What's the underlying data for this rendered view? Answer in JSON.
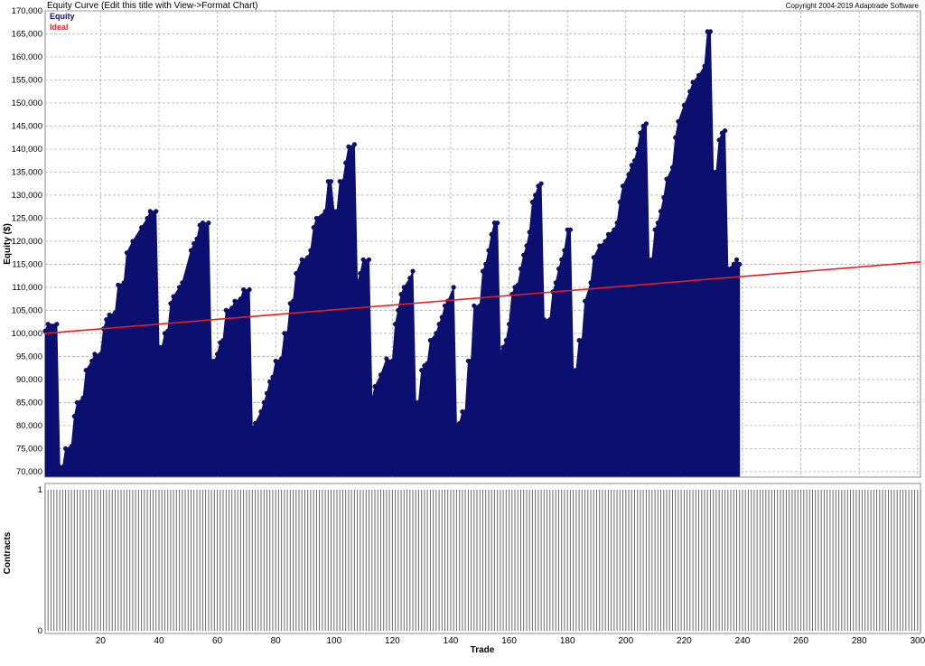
{
  "title": "Equity Curve (Edit this title with View->Format Chart)",
  "copyright": "Copyright 2004-2019 Adaptrade Software",
  "colors": {
    "equity": "#0b1070",
    "ideal": "#e02020",
    "contracts_bars": "#6a6a6a",
    "grid": "#b4b4b4",
    "panel_border": "#8a8a8a"
  },
  "chart_data": [
    {
      "type": "area",
      "title": "Equity Curve (Edit this title with View->Format Chart)",
      "ylabel": "Equity ($)",
      "xlabel": "",
      "xlim": [
        1,
        301
      ],
      "ylim": [
        69000,
        170000
      ],
      "y_ticks": [
        70000,
        75000,
        80000,
        85000,
        90000,
        95000,
        100000,
        105000,
        110000,
        115000,
        120000,
        125000,
        130000,
        135000,
        140000,
        145000,
        150000,
        155000,
        160000,
        165000,
        170000
      ],
      "y_tick_labels": [
        "70,000",
        "75,000",
        "80,000",
        "85,000",
        "90,000",
        "95,000",
        "100,000",
        "105,000",
        "110,000",
        "115,000",
        "120,000",
        "125,000",
        "130,000",
        "135,000",
        "140,000",
        "145,000",
        "150,000",
        "155,000",
        "160,000",
        "165,000",
        "170,000"
      ],
      "grid": true,
      "legend_position": "top-left",
      "series": [
        {
          "name": "Equity",
          "style": "filled area with point markers",
          "keypoints": [
            [
              1,
              100500
            ],
            [
              2,
              102000
            ],
            [
              5,
              102000
            ],
            [
              6,
              71000
            ],
            [
              7,
              71000
            ],
            [
              8,
              75000
            ],
            [
              10,
              75500
            ],
            [
              11,
              82000
            ],
            [
              12,
              85000
            ],
            [
              14,
              86000
            ],
            [
              15,
              92000
            ],
            [
              17,
              94000
            ],
            [
              18,
              95500
            ],
            [
              20,
              95500
            ],
            [
              21,
              101000
            ],
            [
              22,
              103000
            ],
            [
              23,
              104000
            ],
            [
              25,
              104500
            ],
            [
              26,
              110500
            ],
            [
              28,
              111000
            ],
            [
              29,
              117500
            ],
            [
              31,
              120000
            ],
            [
              34,
              123000
            ],
            [
              36,
              125000
            ],
            [
              37,
              126500
            ],
            [
              39,
              126500
            ],
            [
              40,
              97000
            ],
            [
              41,
              97000
            ],
            [
              42,
              100000
            ],
            [
              43,
              100500
            ],
            [
              44,
              106500
            ],
            [
              45,
              108000
            ],
            [
              47,
              110000
            ],
            [
              48,
              111000
            ],
            [
              51,
              118000
            ],
            [
              52,
              119500
            ],
            [
              53,
              120500
            ],
            [
              54,
              123500
            ],
            [
              55,
              124000
            ],
            [
              57,
              124000
            ],
            [
              58,
              94000
            ],
            [
              59,
              94000
            ],
            [
              60,
              95500
            ],
            [
              61,
              98000
            ],
            [
              62,
              98500
            ],
            [
              63,
              105000
            ],
            [
              65,
              105500
            ],
            [
              66,
              107000
            ],
            [
              68,
              107500
            ],
            [
              69,
              109500
            ],
            [
              71,
              109500
            ],
            [
              72,
              79500
            ],
            [
              73,
              80500
            ],
            [
              75,
              83000
            ],
            [
              76,
              85000
            ],
            [
              77,
              87000
            ],
            [
              78,
              89500
            ],
            [
              79,
              90500
            ],
            [
              80,
              94000
            ],
            [
              82,
              94500
            ],
            [
              83,
              100000
            ],
            [
              84,
              100000
            ],
            [
              85,
              106500
            ],
            [
              86,
              107000
            ],
            [
              87,
              113000
            ],
            [
              89,
              116000
            ],
            [
              91,
              116500
            ],
            [
              92,
              118000
            ],
            [
              93,
              123000
            ],
            [
              94,
              125000
            ],
            [
              97,
              126500
            ],
            [
              98,
              133000
            ],
            [
              99,
              133000
            ],
            [
              100,
              126500
            ],
            [
              101,
              126500
            ],
            [
              102,
              133000
            ],
            [
              103,
              133000
            ],
            [
              104,
              137000
            ],
            [
              105,
              140500
            ],
            [
              107,
              141000
            ],
            [
              108,
              111000
            ],
            [
              109,
              113000
            ],
            [
              110,
              116000
            ],
            [
              112,
              116000
            ],
            [
              113,
              85500
            ],
            [
              114,
              88500
            ],
            [
              116,
              91000
            ],
            [
              118,
              94500
            ],
            [
              120,
              94000
            ],
            [
              121,
              102000
            ],
            [
              122,
              105000
            ],
            [
              123,
              108500
            ],
            [
              124,
              110000
            ],
            [
              126,
              112000
            ],
            [
              127,
              113500
            ],
            [
              128,
              85000
            ],
            [
              129,
              85000
            ],
            [
              130,
              92000
            ],
            [
              131,
              93000
            ],
            [
              132,
              93500
            ],
            [
              133,
              98500
            ],
            [
              135,
              100000
            ],
            [
              136,
              102000
            ],
            [
              137,
              103500
            ],
            [
              138,
              106000
            ],
            [
              139,
              107000
            ],
            [
              141,
              110000
            ],
            [
              142,
              80000
            ],
            [
              143,
              80500
            ],
            [
              144,
              83000
            ],
            [
              145,
              83000
            ],
            [
              146,
              94000
            ],
            [
              147,
              94000
            ],
            [
              148,
              106000
            ],
            [
              150,
              106000
            ],
            [
              151,
              113500
            ],
            [
              152,
              115000
            ],
            [
              153,
              118000
            ],
            [
              154,
              121500
            ],
            [
              155,
              124000
            ],
            [
              156,
              124000
            ],
            [
              157,
              96000
            ],
            [
              158,
              97000
            ],
            [
              159,
              98500
            ],
            [
              160,
              102000
            ],
            [
              161,
              108500
            ],
            [
              162,
              110000
            ],
            [
              163,
              110500
            ],
            [
              164,
              114000
            ],
            [
              165,
              117000
            ],
            [
              166,
              119000
            ],
            [
              167,
              122000
            ],
            [
              168,
              128500
            ],
            [
              169,
              130000
            ],
            [
              170,
              132000
            ],
            [
              171,
              132500
            ],
            [
              172,
              103000
            ],
            [
              174,
              103000
            ],
            [
              175,
              109000
            ],
            [
              176,
              111000
            ],
            [
              177,
              114000
            ],
            [
              178,
              116000
            ],
            [
              179,
              118000
            ],
            [
              180,
              122500
            ],
            [
              181,
              122500
            ],
            [
              182,
              92000
            ],
            [
              183,
              92000
            ],
            [
              184,
              98500
            ],
            [
              185,
              98500
            ],
            [
              186,
              107000
            ],
            [
              188,
              111000
            ],
            [
              189,
              116500
            ],
            [
              191,
              119000
            ],
            [
              193,
              120000
            ],
            [
              194,
              121500
            ],
            [
              196,
              122500
            ],
            [
              197,
              124000
            ],
            [
              198,
              128500
            ],
            [
              199,
              132000
            ],
            [
              201,
              134500
            ],
            [
              202,
              136500
            ],
            [
              203,
              137500
            ],
            [
              204,
              140000
            ],
            [
              205,
              143500
            ],
            [
              206,
              145000
            ],
            [
              207,
              145500
            ],
            [
              208,
              116000
            ],
            [
              209,
              116000
            ],
            [
              210,
              122500
            ],
            [
              211,
              124000
            ],
            [
              212,
              126500
            ],
            [
              213,
              129500
            ],
            [
              214,
              133500
            ],
            [
              216,
              136000
            ],
            [
              217,
              142500
            ],
            [
              218,
              146000
            ],
            [
              220,
              149500
            ],
            [
              222,
              152500
            ],
            [
              223,
              154500
            ],
            [
              225,
              156000
            ],
            [
              227,
              158000
            ],
            [
              228,
              165500
            ],
            [
              229,
              165500
            ],
            [
              230,
              135000
            ],
            [
              231,
              135000
            ],
            [
              232,
              142000
            ],
            [
              233,
              143500
            ],
            [
              234,
              144000
            ],
            [
              235,
              114000
            ],
            [
              237,
              115000
            ],
            [
              238,
              116000
            ],
            [
              239,
              115000
            ]
          ]
        },
        {
          "name": "Ideal",
          "style": "straight line",
          "keypoints": [
            [
              1,
              100000
            ],
            [
              301,
              115500
            ]
          ]
        }
      ]
    },
    {
      "type": "bar",
      "title": "",
      "ylabel": "Contracts",
      "xlabel": "Trade",
      "xlim": [
        1,
        301
      ],
      "ylim": [
        0,
        1
      ],
      "y_ticks": [
        0,
        1
      ],
      "y_tick_labels": [
        "0",
        "1"
      ],
      "x_ticks": [
        20,
        40,
        60,
        80,
        100,
        120,
        140,
        160,
        180,
        200,
        220,
        240,
        260,
        280,
        300
      ],
      "x_tick_labels": [
        "20",
        "40",
        "60",
        "80",
        "100",
        "120",
        "140",
        "160",
        "180",
        "200",
        "220",
        "240",
        "260",
        "280",
        "300"
      ],
      "bar_count": 301,
      "bar_value": 1
    }
  ]
}
